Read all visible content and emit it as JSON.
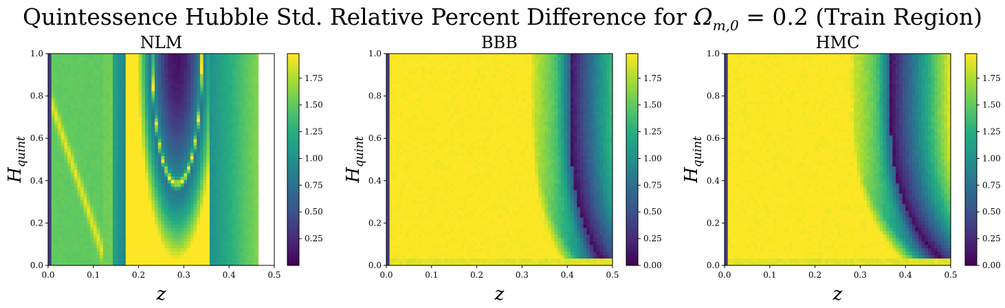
{
  "figure": {
    "title_prefix": "Quintessence Hubble Std. Relative Percent Difference for ",
    "title_math": "Ω",
    "title_sub": "m,0",
    "title_suffix": " = 0.2 (Train Region)"
  },
  "colormap": "viridis",
  "chart_data": [
    {
      "type": "heatmap",
      "title": "NLM",
      "xlabel": "z",
      "ylabel_main": "H",
      "ylabel_sub": "quint",
      "xlim": [
        0.0,
        0.5
      ],
      "ylim": [
        0.0,
        1.0
      ],
      "xticks": [
        "0.0",
        "0.1",
        "0.2",
        "0.3",
        "0.4",
        "0.5"
      ],
      "yticks": [
        "0.0",
        "0.2",
        "0.4",
        "0.6",
        "0.8",
        "1.0"
      ],
      "colorbar": {
        "min": 0.0,
        "max": 1.98,
        "ticks": [
          "0.25",
          "0.50",
          "0.75",
          "1.00",
          "1.25",
          "1.50",
          "1.75"
        ]
      },
      "data_extent_z": 0.465,
      "pattern": "nlm"
    },
    {
      "type": "heatmap",
      "title": "BBB",
      "xlabel": "z",
      "ylabel_main": "H",
      "ylabel_sub": "quint",
      "xlim": [
        0.0,
        0.5
      ],
      "ylim": [
        0.0,
        1.0
      ],
      "xticks": [
        "0.0",
        "0.1",
        "0.2",
        "0.3",
        "0.4",
        "0.5"
      ],
      "yticks": [
        "0.0",
        "0.2",
        "0.4",
        "0.6",
        "0.8",
        "1.0"
      ],
      "colorbar": {
        "min": 0.0,
        "max": 1.98,
        "ticks": [
          "0.00",
          "0.25",
          "0.50",
          "0.75",
          "1.00",
          "1.25",
          "1.50",
          "1.75"
        ]
      },
      "minimum_curve": {
        "z_at_top": 0.405,
        "z_at_bottom": 0.48
      },
      "pattern": "bbb"
    },
    {
      "type": "heatmap",
      "title": "HMC",
      "xlabel": "z",
      "ylabel_main": "H",
      "ylabel_sub": "quint",
      "xlim": [
        0.0,
        0.5
      ],
      "ylim": [
        0.0,
        1.0
      ],
      "xticks": [
        "0.0",
        "0.1",
        "0.2",
        "0.3",
        "0.4",
        "0.5"
      ],
      "yticks": [
        "0.0",
        "0.2",
        "0.4",
        "0.6",
        "0.8",
        "1.0"
      ],
      "colorbar": {
        "min": 0.0,
        "max": 1.98,
        "ticks": [
          "0.00",
          "0.25",
          "0.50",
          "0.75",
          "1.00",
          "1.25",
          "1.50",
          "1.75"
        ]
      },
      "minimum_curve": {
        "z_at_top": 0.365,
        "z_at_bottom": 0.49
      },
      "pattern": "hmc"
    }
  ]
}
